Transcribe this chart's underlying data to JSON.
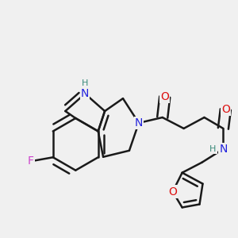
{
  "background_color": "#f0f0f0",
  "bond_color": "#1a1a1a",
  "bond_width": 1.8,
  "figsize": [
    3.0,
    3.0
  ],
  "dpi": 100,
  "atom_colors": {
    "N": "#2222dd",
    "NH": "#2222dd",
    "H": "#3a8a7a",
    "F": "#cc44cc",
    "O": "#dd1111"
  }
}
